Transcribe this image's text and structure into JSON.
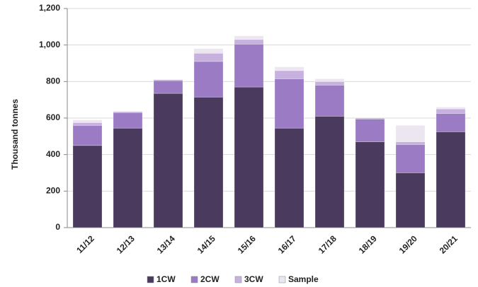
{
  "chart_data": {
    "type": "stacked_bar",
    "ylabel": "Thousand tonnes",
    "categories": [
      "11/12",
      "12/13",
      "13/14",
      "14/15",
      "15/16",
      "16/17",
      "17/18",
      "18/19",
      "19/20",
      "20/21"
    ],
    "series": [
      {
        "name": "1CW",
        "color": "#4a3a5e",
        "values": [
          450,
          545,
          735,
          715,
          770,
          545,
          610,
          470,
          300,
          525
        ]
      },
      {
        "name": "2CW",
        "color": "#9a7bc4",
        "values": [
          110,
          85,
          70,
          195,
          235,
          270,
          170,
          125,
          155,
          100
        ]
      },
      {
        "name": "3CW",
        "color": "#c7b2df",
        "values": [
          15,
          5,
          5,
          45,
          25,
          45,
          20,
          5,
          15,
          25
        ]
      },
      {
        "name": "Sample",
        "color": "#ebe6f0",
        "values": [
          15,
          0,
          0,
          25,
          20,
          20,
          15,
          0,
          90,
          10
        ]
      }
    ],
    "ylim": [
      0,
      1200
    ],
    "yticks": [
      0,
      200,
      400,
      600,
      800,
      {
        "value": 1000,
        "label": "1,000"
      },
      {
        "value": 1200,
        "label": "1,200"
      }
    ],
    "grid": true
  }
}
